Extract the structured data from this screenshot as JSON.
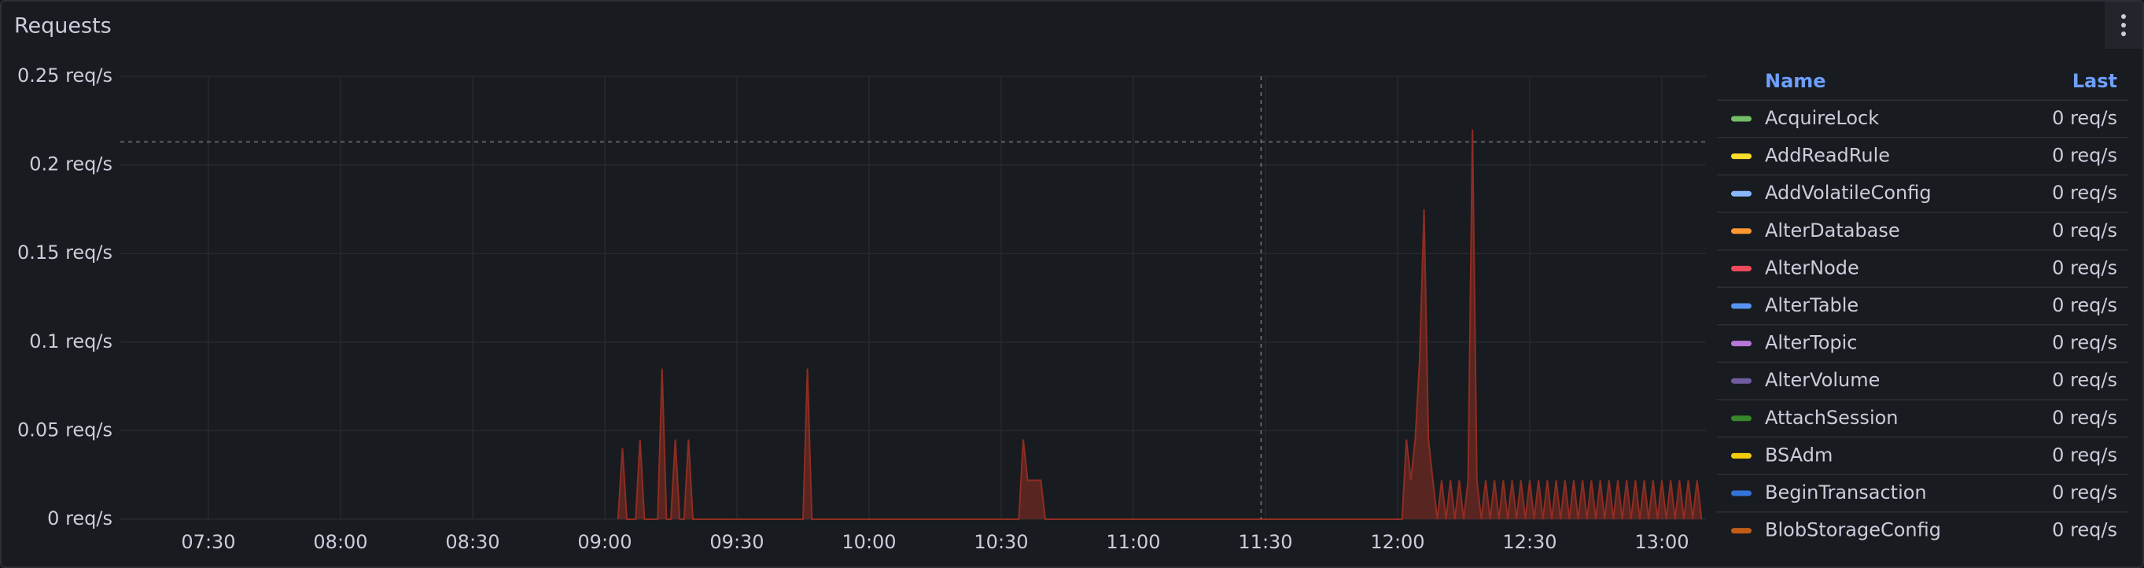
{
  "title": "Requests",
  "chart_data": {
    "type": "area",
    "ylim": [
      0,
      0.25
    ],
    "yticks": [
      {
        "value": 0,
        "label": "0 req/s"
      },
      {
        "value": 0.05,
        "label": "0.05 req/s"
      },
      {
        "value": 0.1,
        "label": "0.1 req/s"
      },
      {
        "value": 0.15,
        "label": "0.15 req/s"
      },
      {
        "value": 0.2,
        "label": "0.2 req/s"
      },
      {
        "value": 0.25,
        "label": "0.25 req/s"
      }
    ],
    "xlim": [
      "07:10",
      "13:10"
    ],
    "xticks": [
      "07:30",
      "08:00",
      "08:30",
      "09:00",
      "09:30",
      "10:00",
      "10:30",
      "11:00",
      "11:30",
      "12:00",
      "12:30",
      "13:00"
    ],
    "grid": true,
    "crosshair": {
      "x": "11:29",
      "y": 0.213
    },
    "traffic": {
      "color": "#8f2d22",
      "x": [
        "09:03",
        "09:04",
        "09:05",
        "09:07",
        "09:08",
        "09:09",
        "09:12",
        "09:13",
        "09:14",
        "09:15",
        "09:16",
        "09:17",
        "09:18",
        "09:19",
        "09:20",
        "09:45",
        "09:46",
        "09:47",
        "10:34",
        "10:35",
        "10:36",
        "10:37",
        "10:38",
        "10:39",
        "10:40",
        "12:01",
        "12:02",
        "12:03",
        "12:04",
        "12:05",
        "12:06",
        "12:07",
        "12:08",
        "12:09",
        "12:10",
        "12:11",
        "12:12",
        "12:13",
        "12:14",
        "12:15",
        "12:16",
        "12:17",
        "12:18",
        "12:19",
        "12:20",
        "12:21",
        "12:22",
        "12:23",
        "12:24",
        "12:25",
        "12:26",
        "12:27",
        "12:28",
        "12:29",
        "12:30",
        "12:31",
        "12:32",
        "12:33",
        "12:34",
        "12:35",
        "12:36",
        "12:37",
        "12:38",
        "12:39",
        "12:40",
        "12:41",
        "12:42",
        "12:43",
        "12:44",
        "12:45",
        "12:46",
        "12:47",
        "12:48",
        "12:49",
        "12:50",
        "12:51",
        "12:52",
        "12:53",
        "12:54",
        "12:55",
        "12:56",
        "12:57",
        "12:58",
        "12:59",
        "13:00",
        "13:01",
        "13:02",
        "13:03",
        "13:04",
        "13:05",
        "13:06",
        "13:07",
        "13:08",
        "13:09"
      ],
      "values": [
        0,
        0.04,
        0,
        0,
        0.045,
        0,
        0,
        0.085,
        0,
        0,
        0.045,
        0,
        0,
        0.045,
        0,
        0,
        0.085,
        0,
        0,
        0.045,
        0.022,
        0.022,
        0.022,
        0.022,
        0,
        0,
        0.045,
        0.022,
        0.045,
        0.09,
        0.175,
        0.045,
        0.022,
        0,
        0.022,
        0,
        0.022,
        0,
        0.022,
        0,
        0.022,
        0.22,
        0.022,
        0,
        0.022,
        0,
        0.022,
        0,
        0.022,
        0,
        0.022,
        0,
        0.022,
        0,
        0.022,
        0,
        0.022,
        0,
        0.022,
        0,
        0.022,
        0,
        0.022,
        0,
        0.022,
        0,
        0.022,
        0,
        0.022,
        0,
        0.022,
        0,
        0.022,
        0,
        0.022,
        0,
        0.022,
        0,
        0.022,
        0,
        0.022,
        0,
        0.022,
        0,
        0.022,
        0,
        0.022,
        0,
        0.022,
        0,
        0.022,
        0,
        0.022,
        0
      ]
    },
    "legend_header": [
      "Name",
      "Last"
    ],
    "series": [
      {
        "name": "AcquireLock",
        "color": "#73bf69",
        "values": [
          0
        ],
        "value_labels": [
          "0 req/s"
        ]
      },
      {
        "name": "AddReadRule",
        "color": "#fade2a",
        "values": [
          0
        ],
        "value_labels": [
          "0 req/s"
        ]
      },
      {
        "name": "AddVolatileConfig",
        "color": "#8ab8ff",
        "values": [
          0
        ],
        "value_labels": [
          "0 req/s"
        ]
      },
      {
        "name": "AlterDatabase",
        "color": "#ff9830",
        "values": [
          0
        ],
        "value_labels": [
          "0 req/s"
        ]
      },
      {
        "name": "AlterNode",
        "color": "#f2495c",
        "values": [
          0
        ],
        "value_labels": [
          "0 req/s"
        ]
      },
      {
        "name": "AlterTable",
        "color": "#5794f2",
        "values": [
          0
        ],
        "value_labels": [
          "0 req/s"
        ]
      },
      {
        "name": "AlterTopic",
        "color": "#b877d9",
        "values": [
          0
        ],
        "value_labels": [
          "0 req/s"
        ]
      },
      {
        "name": "AlterVolume",
        "color": "#705da0",
        "values": [
          0
        ],
        "value_labels": [
          "0 req/s"
        ]
      },
      {
        "name": "AttachSession",
        "color": "#37872d",
        "values": [
          0
        ],
        "value_labels": [
          "0 req/s"
        ]
      },
      {
        "name": "BSAdm",
        "color": "#f2cc0c",
        "values": [
          0
        ],
        "value_labels": [
          "0 req/s"
        ]
      },
      {
        "name": "BeginTransaction",
        "color": "#3274d9",
        "values": [
          0
        ],
        "value_labels": [
          "0 req/s"
        ]
      },
      {
        "name": "BlobStorageConfig",
        "color": "#c15c17",
        "values": [
          0
        ],
        "value_labels": [
          "0 req/s"
        ]
      }
    ]
  }
}
